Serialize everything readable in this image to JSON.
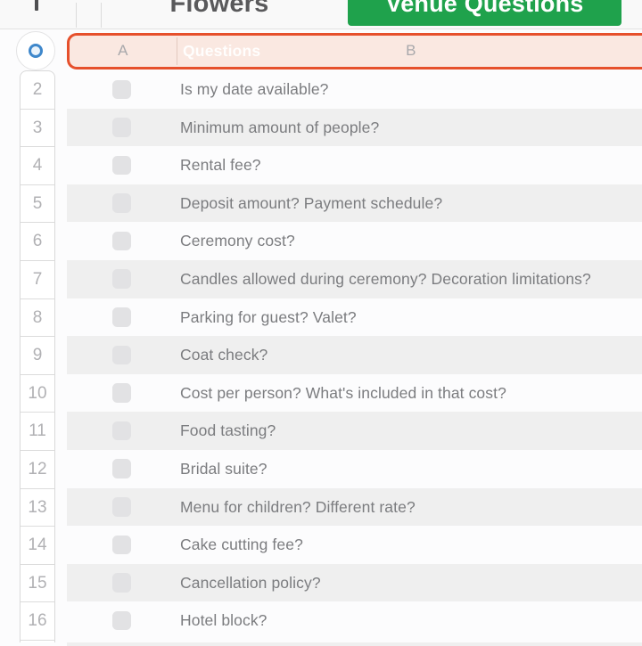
{
  "tab_bar": {
    "add_sheet_icon": "plus",
    "tabs": [
      {
        "label": "Flowers",
        "active": false
      },
      {
        "label": "Venue Questions",
        "active": true
      }
    ]
  },
  "table": {
    "header": {
      "column_a": "A",
      "column_b": "B",
      "title": "Questions"
    },
    "select_all_icon": "circle-selection-handle",
    "rows": [
      {
        "num": "2",
        "checked": false,
        "question": "Is my date available?"
      },
      {
        "num": "3",
        "checked": false,
        "question": "Minimum amount of people?"
      },
      {
        "num": "4",
        "checked": false,
        "question": "Rental fee?"
      },
      {
        "num": "5",
        "checked": false,
        "question": "Deposit amount? Payment schedule?"
      },
      {
        "num": "6",
        "checked": false,
        "question": "Ceremony cost?"
      },
      {
        "num": "7",
        "checked": false,
        "question": "Candles allowed during ceremony? Decoration limitations?"
      },
      {
        "num": "8",
        "checked": false,
        "question": "Parking for guest? Valet?"
      },
      {
        "num": "9",
        "checked": false,
        "question": "Coat check?"
      },
      {
        "num": "10",
        "checked": false,
        "question": "Cost per person? What's included in that cost?"
      },
      {
        "num": "11",
        "checked": false,
        "question": "Food tasting?"
      },
      {
        "num": "12",
        "checked": false,
        "question": "Bridal suite?"
      },
      {
        "num": "13",
        "checked": false,
        "question": "Menu for children? Different rate?"
      },
      {
        "num": "14",
        "checked": false,
        "question": "Cake cutting fee?"
      },
      {
        "num": "15",
        "checked": false,
        "question": "Cancellation policy?"
      },
      {
        "num": "16",
        "checked": false,
        "question": "Hotel block?"
      }
    ]
  },
  "colors": {
    "active_tab_green": "#1FA24C",
    "selection_orange": "#E6502C",
    "header_fill_pink": "#FAE8E1",
    "shaded_row_gray": "#EFEFEF",
    "checkbox_gray": "#E2E2E4",
    "selection_handle_blue": "#3E87CB"
  }
}
